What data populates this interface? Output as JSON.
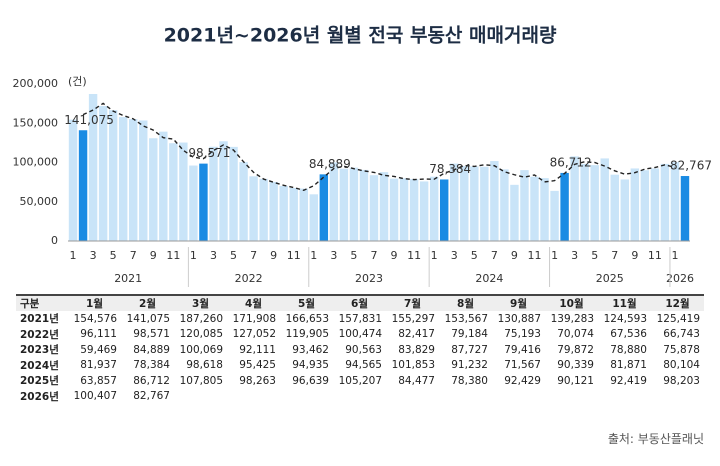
{
  "chart_data": {
    "type": "bar",
    "title": "2021년~2026년 월별 전국 부동산 매매거래량",
    "y_unit": "(건)",
    "categories": [
      "1",
      null,
      "3",
      null,
      "5",
      null,
      "7",
      null,
      "9",
      null,
      "11",
      null,
      "1",
      null,
      "3",
      null,
      "5",
      null,
      "7",
      null,
      "9",
      null,
      "11",
      null,
      "1",
      null,
      "3",
      null,
      "5",
      null,
      "7",
      null,
      "9",
      null,
      "11",
      null,
      "1",
      null,
      "3",
      null,
      "5",
      null,
      "7",
      null,
      "9",
      null,
      "11",
      null,
      "1",
      null,
      "3",
      null,
      "5",
      null,
      "7",
      null,
      "9",
      null,
      "11",
      null,
      "1",
      null
    ],
    "year_labels": [
      "2021",
      "2022",
      "2023",
      "2024",
      "2025",
      "2026"
    ],
    "ylim": [
      0,
      200000
    ],
    "yticks": [
      0,
      {
        "value": 50000,
        "label": "50,000"
      },
      {
        "value": 100000,
        "label": "100,000"
      },
      {
        "value": 150000,
        "label": "150,000"
      },
      {
        "value": 200000,
        "label": "200,000"
      }
    ],
    "grid": false,
    "series": [
      {
        "type": "bar",
        "color": "#c9e4f8",
        "highlight_color": "#1a8be3",
        "values": [
          154576,
          141075,
          187260,
          171908,
          166653,
          157831,
          155297,
          153567,
          130887,
          139283,
          124593,
          125419,
          96111,
          98571,
          120085,
          127052,
          119905,
          100474,
          82417,
          79184,
          75193,
          70074,
          67536,
          66743,
          59469,
          84889,
          100069,
          92111,
          93462,
          90563,
          83829,
          87727,
          79416,
          79872,
          78880,
          75878,
          81937,
          78384,
          98618,
          95425,
          94935,
          94565,
          101853,
          91232,
          71567,
          90339,
          81871,
          80104,
          63857,
          86712,
          107805,
          98263,
          96639,
          105207,
          84477,
          78380,
          92429,
          90121,
          92419,
          98203,
          100407,
          82767
        ],
        "value_labels": [
          null,
          "141,075",
          null,
          null,
          null,
          null,
          null,
          null,
          null,
          null,
          null,
          null,
          null,
          "98,571",
          null,
          null,
          null,
          null,
          null,
          null,
          null,
          null,
          null,
          null,
          null,
          "84,889",
          null,
          null,
          null,
          null,
          null,
          null,
          null,
          null,
          null,
          null,
          null,
          "78,384",
          null,
          null,
          null,
          null,
          null,
          null,
          null,
          null,
          null,
          null,
          null,
          "86,712",
          null,
          null,
          null,
          null,
          null,
          null,
          null,
          null,
          null,
          null,
          null,
          "82,767"
        ]
      },
      {
        "type": "line",
        "color": "#222222",
        "dashed": true,
        "values": [
          null,
          161000,
          166800,
          175300,
          165500,
          159900,
          155600,
          146600,
          141300,
          131600,
          129800,
          115400,
          106700,
          104900,
          115300,
          122400,
          115800,
          100900,
          87400,
          78900,
          74800,
          70900,
          68100,
          64600,
          70400,
          81500,
          92400,
          95200,
          92100,
          89300,
          87400,
          83600,
          82300,
          79400,
          78200,
          78900,
          78700,
          86300,
          90800,
          96300,
          95000,
          97100,
          95900,
          88200,
          84400,
          81300,
          84100,
          75300,
          76900,
          86100,
          97600,
          100900,
          100000,
          95400,
          89400,
          85100,
          87000,
          91600,
          93600,
          97000,
          93800,
          null
        ]
      }
    ]
  },
  "table": {
    "header": [
      "구분",
      "1월",
      "2월",
      "3월",
      "4월",
      "5월",
      "6월",
      "7월",
      "8월",
      "9월",
      "10월",
      "11월",
      "12월"
    ],
    "rows": [
      [
        "2021년",
        "154,576",
        "141,075",
        "187,260",
        "171,908",
        "166,653",
        "157,831",
        "155,297",
        "153,567",
        "130,887",
        "139,283",
        "124,593",
        "125,419"
      ],
      [
        "2022년",
        "96,111",
        "98,571",
        "120,085",
        "127,052",
        "119,905",
        "100,474",
        "82,417",
        "79,184",
        "75,193",
        "70,074",
        "67,536",
        "66,743"
      ],
      [
        "2023년",
        "59,469",
        "84,889",
        "100,069",
        "92,111",
        "93,462",
        "90,563",
        "83,829",
        "87,727",
        "79,416",
        "79,872",
        "78,880",
        "75,878"
      ],
      [
        "2024년",
        "81,937",
        "78,384",
        "98,618",
        "95,425",
        "94,935",
        "94,565",
        "101,853",
        "91,232",
        "71,567",
        "90,339",
        "81,871",
        "80,104"
      ],
      [
        "2025년",
        "63,857",
        "86,712",
        "107,805",
        "98,263",
        "96,639",
        "105,207",
        "84,477",
        "78,380",
        "92,429",
        "90,121",
        "92,419",
        "98,203"
      ],
      [
        "2026년",
        "100,407",
        "82,767"
      ]
    ]
  },
  "source": "출처: 부동산플래닛"
}
